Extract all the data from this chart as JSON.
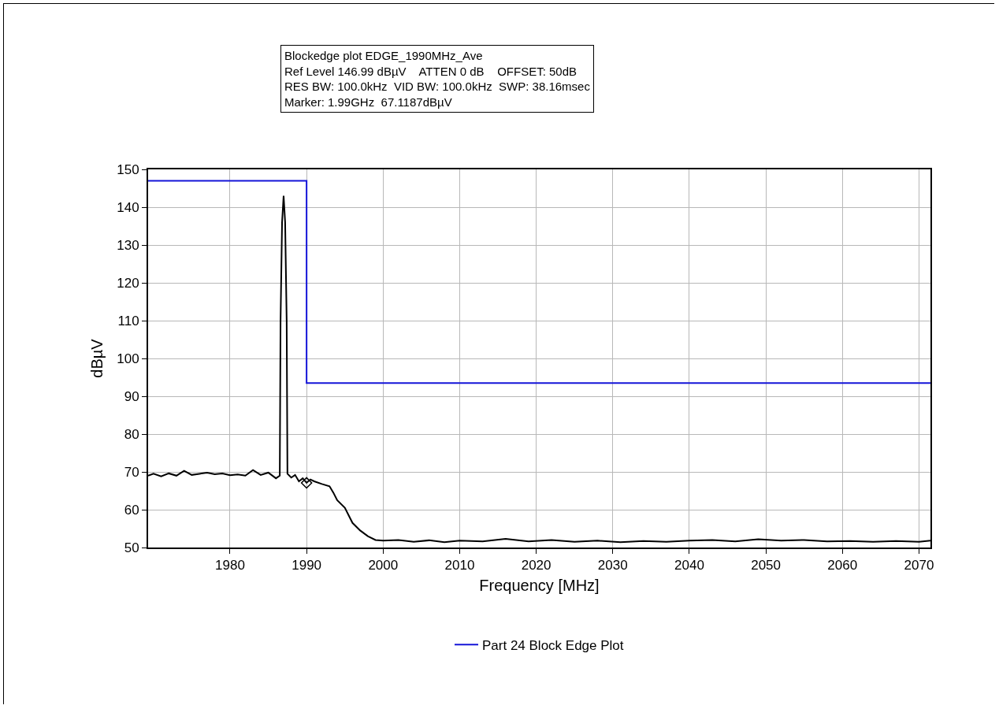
{
  "chart_data": {
    "type": "line",
    "annotations": [
      "Blockedge plot EDGE_1990MHz_Ave",
      "Ref Level 146.99 dBµV    ATTEN 0 dB    OFFSET: 50dB",
      "RES BW: 100.0kHz  VID BW: 100.0kHz  SWP: 38.16msec",
      "Marker: 1.99GHz  67.1187dBµV"
    ],
    "xlabel": "Frequency [MHz]",
    "ylabel": "dBµV",
    "xlim": [
      1969.3,
      2071.5
    ],
    "xticks": [
      1980,
      1990,
      2000,
      2010,
      2020,
      2030,
      2040,
      2050,
      2060,
      2070
    ],
    "ylim": [
      50,
      150
    ],
    "yticks": [
      50,
      60,
      70,
      80,
      90,
      100,
      110,
      120,
      130,
      140,
      150
    ],
    "grid": true,
    "legend": "bottom",
    "line_style": "solid",
    "series": [
      {
        "color": "#000000",
        "marker": "none",
        "x": [
          1969.3,
          1970,
          1971,
          1972,
          1973,
          1974,
          1975,
          1976,
          1977,
          1978,
          1979,
          1980,
          1981,
          1982,
          1983,
          1984,
          1985,
          1986,
          1986.5,
          1986.6,
          1986.8,
          1987,
          1987.2,
          1987.4,
          1987.5,
          1988,
          1988.5,
          1989,
          1989.5,
          1990,
          1990.5,
          1991,
          1992,
          1993,
          1993.5,
          1994,
          1995,
          1996,
          1997,
          1998,
          1999,
          2000,
          2002,
          2004,
          2006,
          2008,
          2010,
          2013,
          2016,
          2019,
          2022,
          2025,
          2028,
          2031,
          2034,
          2037,
          2040,
          2043,
          2046,
          2049,
          2052,
          2055,
          2058,
          2061,
          2064,
          2067,
          2070,
          2071.5
        ],
        "values": [
          69,
          69.5,
          68.8,
          69.6,
          69,
          70.3,
          69.2,
          69.5,
          69.8,
          69.4,
          69.6,
          69.1,
          69.3,
          69,
          70.5,
          69.2,
          69.8,
          68.3,
          69,
          110,
          136,
          143,
          136,
          110,
          69.5,
          68.5,
          69.2,
          67.5,
          68.3,
          67.1,
          68,
          67.5,
          66.8,
          66.2,
          64.5,
          62.5,
          60.5,
          56.5,
          54.5,
          53,
          52,
          51.8,
          52,
          51.5,
          51.9,
          51.4,
          51.8,
          51.6,
          52.3,
          51.6,
          52,
          51.5,
          51.8,
          51.4,
          51.7,
          51.5,
          51.8,
          52,
          51.6,
          52.2,
          51.8,
          52,
          51.6,
          51.7,
          51.5,
          51.7,
          51.5,
          51.8
        ]
      },
      {
        "type": "scatter",
        "color": "#000000",
        "marker": "diamond",
        "x": [
          1990
        ],
        "values": [
          67.1
        ]
      },
      {
        "name": "Part 24 Block Edge Plot",
        "color": "#1414d8",
        "marker": "none",
        "x": [
          1969.3,
          1990,
          1990,
          2071.5
        ],
        "values": [
          147,
          147,
          93.5,
          93.5
        ]
      }
    ]
  }
}
